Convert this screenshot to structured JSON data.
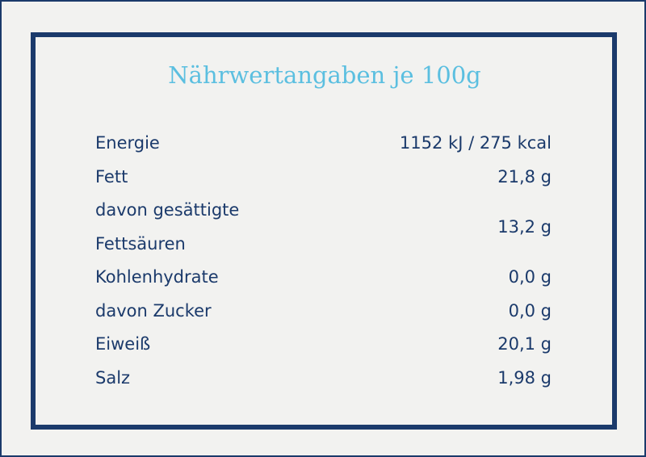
{
  "title": "Nährwertangaben je 100g",
  "table": {
    "rows": [
      [
        "Energie",
        "1152 kJ / 275 kcal"
      ],
      [
        "Fett",
        "21,8 g"
      ],
      [
        "davon gesättigte Fettsäuren",
        "13,2 g"
      ],
      [
        "Kohlenhydrate",
        "0,0 g"
      ],
      [
        "davon Zucker",
        "0,0 g"
      ],
      [
        "Eiweiß",
        "20,1 g"
      ],
      [
        "Salz",
        "1,98 g"
      ]
    ]
  }
}
